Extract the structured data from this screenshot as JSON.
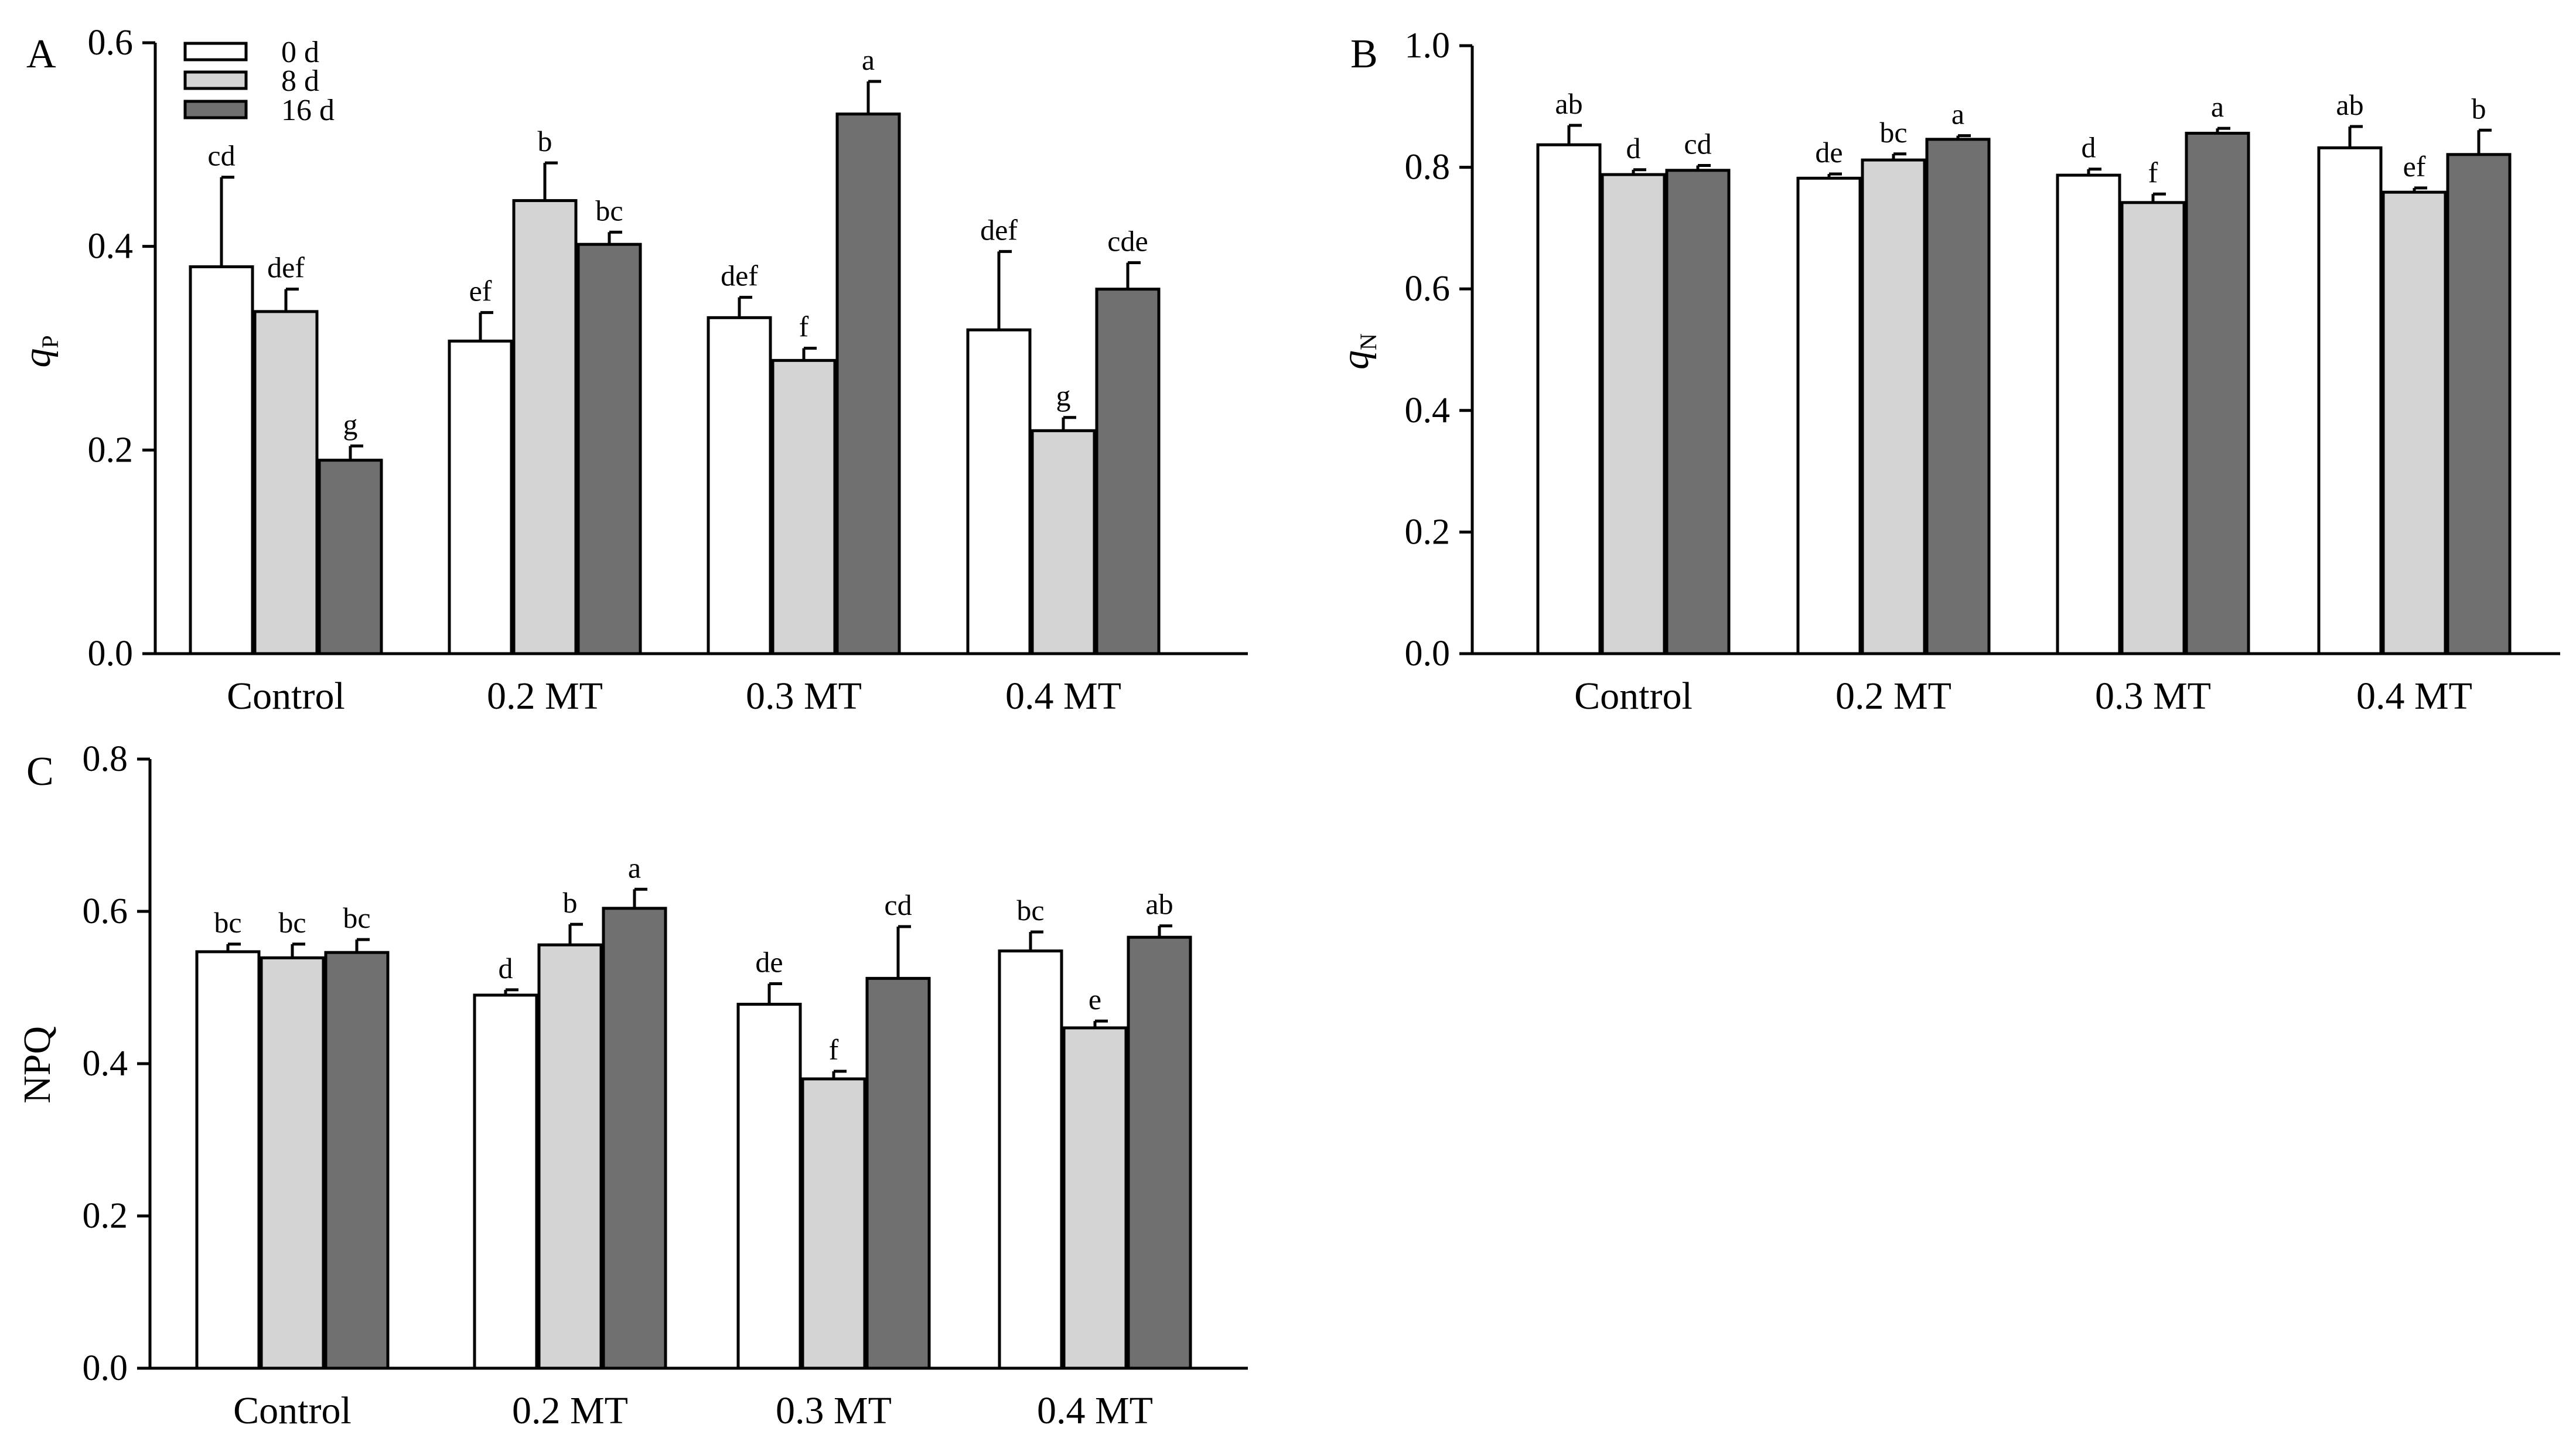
{
  "figure": {
    "legend": {
      "entries": [
        "0 d",
        "8 d",
        "16 d"
      ]
    },
    "series_colors": [
      "#ffffff",
      "#d4d4d4",
      "#707070"
    ]
  },
  "chart_data": [
    {
      "type": "bar",
      "panel_label": "A",
      "ylabel_main": "q",
      "ylabel_sub": "P",
      "ylim": [
        0,
        0.6
      ],
      "yticks": [
        "0.0",
        "0.2",
        "0.4",
        "0.6"
      ],
      "categories": [
        "Control",
        "0.2 MT",
        "0.3 MT",
        "0.4 MT"
      ],
      "series": [
        {
          "name": "0 d",
          "values": [
            0.38,
            0.307,
            0.33,
            0.318
          ],
          "errors": [
            0.088,
            0.028,
            0.02,
            0.077
          ],
          "letters": [
            "cd",
            "ef",
            "def",
            "def"
          ]
        },
        {
          "name": "8 d",
          "values": [
            0.336,
            0.445,
            0.288,
            0.219
          ],
          "errors": [
            0.022,
            0.037,
            0.012,
            0.013
          ],
          "letters": [
            "def",
            "b",
            "f",
            "g"
          ]
        },
        {
          "name": "16 d",
          "values": [
            0.19,
            0.402,
            0.53,
            0.358
          ],
          "errors": [
            0.014,
            0.012,
            0.032,
            0.026
          ],
          "letters": [
            "g",
            "bc",
            "a",
            "cde"
          ]
        }
      ]
    },
    {
      "type": "bar",
      "panel_label": "B",
      "ylabel_main": "q",
      "ylabel_sub": "N",
      "ylim": [
        0,
        1.0
      ],
      "yticks": [
        "0.0",
        "0.2",
        "0.4",
        "0.6",
        "0.8",
        "1.0"
      ],
      "categories": [
        "Control",
        "0.2 MT",
        "0.3 MT",
        "0.4 MT"
      ],
      "series": [
        {
          "name": "0 d",
          "values": [
            0.837,
            0.782,
            0.787,
            0.832
          ],
          "errors": [
            0.032,
            0.007,
            0.01,
            0.035
          ],
          "letters": [
            "ab",
            "de",
            "d",
            "ab"
          ]
        },
        {
          "name": "8 d",
          "values": [
            0.788,
            0.812,
            0.742,
            0.759
          ],
          "errors": [
            0.008,
            0.01,
            0.014,
            0.007
          ],
          "letters": [
            "d",
            "bc",
            "f",
            "ef"
          ]
        },
        {
          "name": "16 d",
          "values": [
            0.795,
            0.846,
            0.856,
            0.821
          ],
          "errors": [
            0.008,
            0.006,
            0.008,
            0.04
          ],
          "letters": [
            "cd",
            "a",
            "a",
            "b"
          ]
        }
      ]
    },
    {
      "type": "bar",
      "panel_label": "C",
      "ylabel_main": "NPQ",
      "ylabel_sub": "",
      "ylim": [
        0,
        0.8
      ],
      "yticks": [
        "0.0",
        "0.2",
        "0.4",
        "0.6",
        "0.8"
      ],
      "categories": [
        "Control",
        "0.2 MT",
        "0.3 MT",
        "0.4 MT"
      ],
      "series": [
        {
          "name": "0 d",
          "values": [
            0.547,
            0.49,
            0.478,
            0.548
          ],
          "errors": [
            0.01,
            0.007,
            0.027,
            0.025
          ],
          "letters": [
            "bc",
            "d",
            "de",
            "bc"
          ]
        },
        {
          "name": "8 d",
          "values": [
            0.539,
            0.556,
            0.38,
            0.447
          ],
          "errors": [
            0.018,
            0.027,
            0.01,
            0.009
          ],
          "letters": [
            "bc",
            "b",
            "f",
            "e"
          ]
        },
        {
          "name": "16 d",
          "values": [
            0.546,
            0.604,
            0.512,
            0.566
          ],
          "errors": [
            0.017,
            0.025,
            0.068,
            0.015
          ],
          "letters": [
            "bc",
            "a",
            "cd",
            "ab"
          ]
        }
      ]
    }
  ]
}
